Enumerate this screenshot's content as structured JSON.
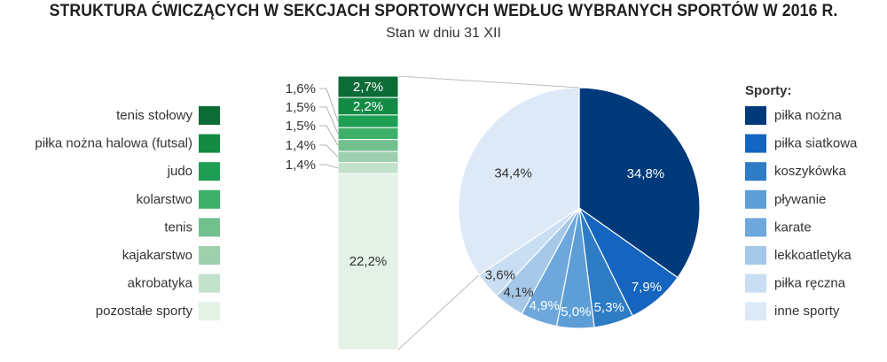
{
  "title": "STRUKTURA ĆWICZĄCYCH W SEKCJACH SPORTOWYCH WEDŁUG WYBRANYCH SPORTÓW W 2016 R.",
  "subtitle": "Stan w dniu 31 XII",
  "chart_data": [
    {
      "type": "pie",
      "legend_title": "Sporty:",
      "legend_position": "right",
      "series": [
        {
          "label": "piłka nożna",
          "value": 34.8,
          "value_label": "34,8%",
          "color": "#003a7a"
        },
        {
          "label": "piłka siatkowa",
          "value": 7.9,
          "value_label": "7,9%",
          "color": "#1565c0"
        },
        {
          "label": "koszykówka",
          "value": 5.3,
          "value_label": "5,3%",
          "color": "#2e7cc4"
        },
        {
          "label": "pływanie",
          "value": 5.0,
          "value_label": "5,0%",
          "color": "#5e9ed6"
        },
        {
          "label": "karate",
          "value": 4.9,
          "value_label": "4,9%",
          "color": "#6da7dc"
        },
        {
          "label": "lekkoatletyka",
          "value": 4.1,
          "value_label": "4,1%",
          "color": "#a6c8e8"
        },
        {
          "label": "piłka ręczna",
          "value": 3.6,
          "value_label": "3,6%",
          "color": "#c9def3"
        },
        {
          "label": "inne sporty",
          "value": 34.4,
          "value_label": "34,4%",
          "color": "#dde9f7"
        }
      ]
    },
    {
      "type": "bar",
      "stacked": true,
      "breakdown_of": "inne sporty",
      "legend_position": "left",
      "series": [
        {
          "label": "tenis stołowy",
          "value": 2.7,
          "value_label": "2,7%",
          "color": "#0d6b37"
        },
        {
          "label": "piłka nożna halowa (futsal)",
          "value": 2.2,
          "value_label": "2,2%",
          "color": "#148a45"
        },
        {
          "label": "judo",
          "value": 1.6,
          "value_label": "1,6%",
          "color": "#1e9e55"
        },
        {
          "label": "kolarstwo",
          "value": 1.5,
          "value_label": "1,5%",
          "color": "#3fb06a"
        },
        {
          "label": "tenis",
          "value": 1.5,
          "value_label": "1,5%",
          "color": "#72c08e"
        },
        {
          "label": "kajakarstwo",
          "value": 1.4,
          "value_label": "1,4%",
          "color": "#9ed0ae"
        },
        {
          "label": "akrobatyka",
          "value": 1.4,
          "value_label": "1,4%",
          "color": "#c3e1cb"
        },
        {
          "label": "pozostałe sporty",
          "value": 22.2,
          "value_label": "22,2%",
          "color": "#e4f1e6"
        }
      ]
    }
  ]
}
